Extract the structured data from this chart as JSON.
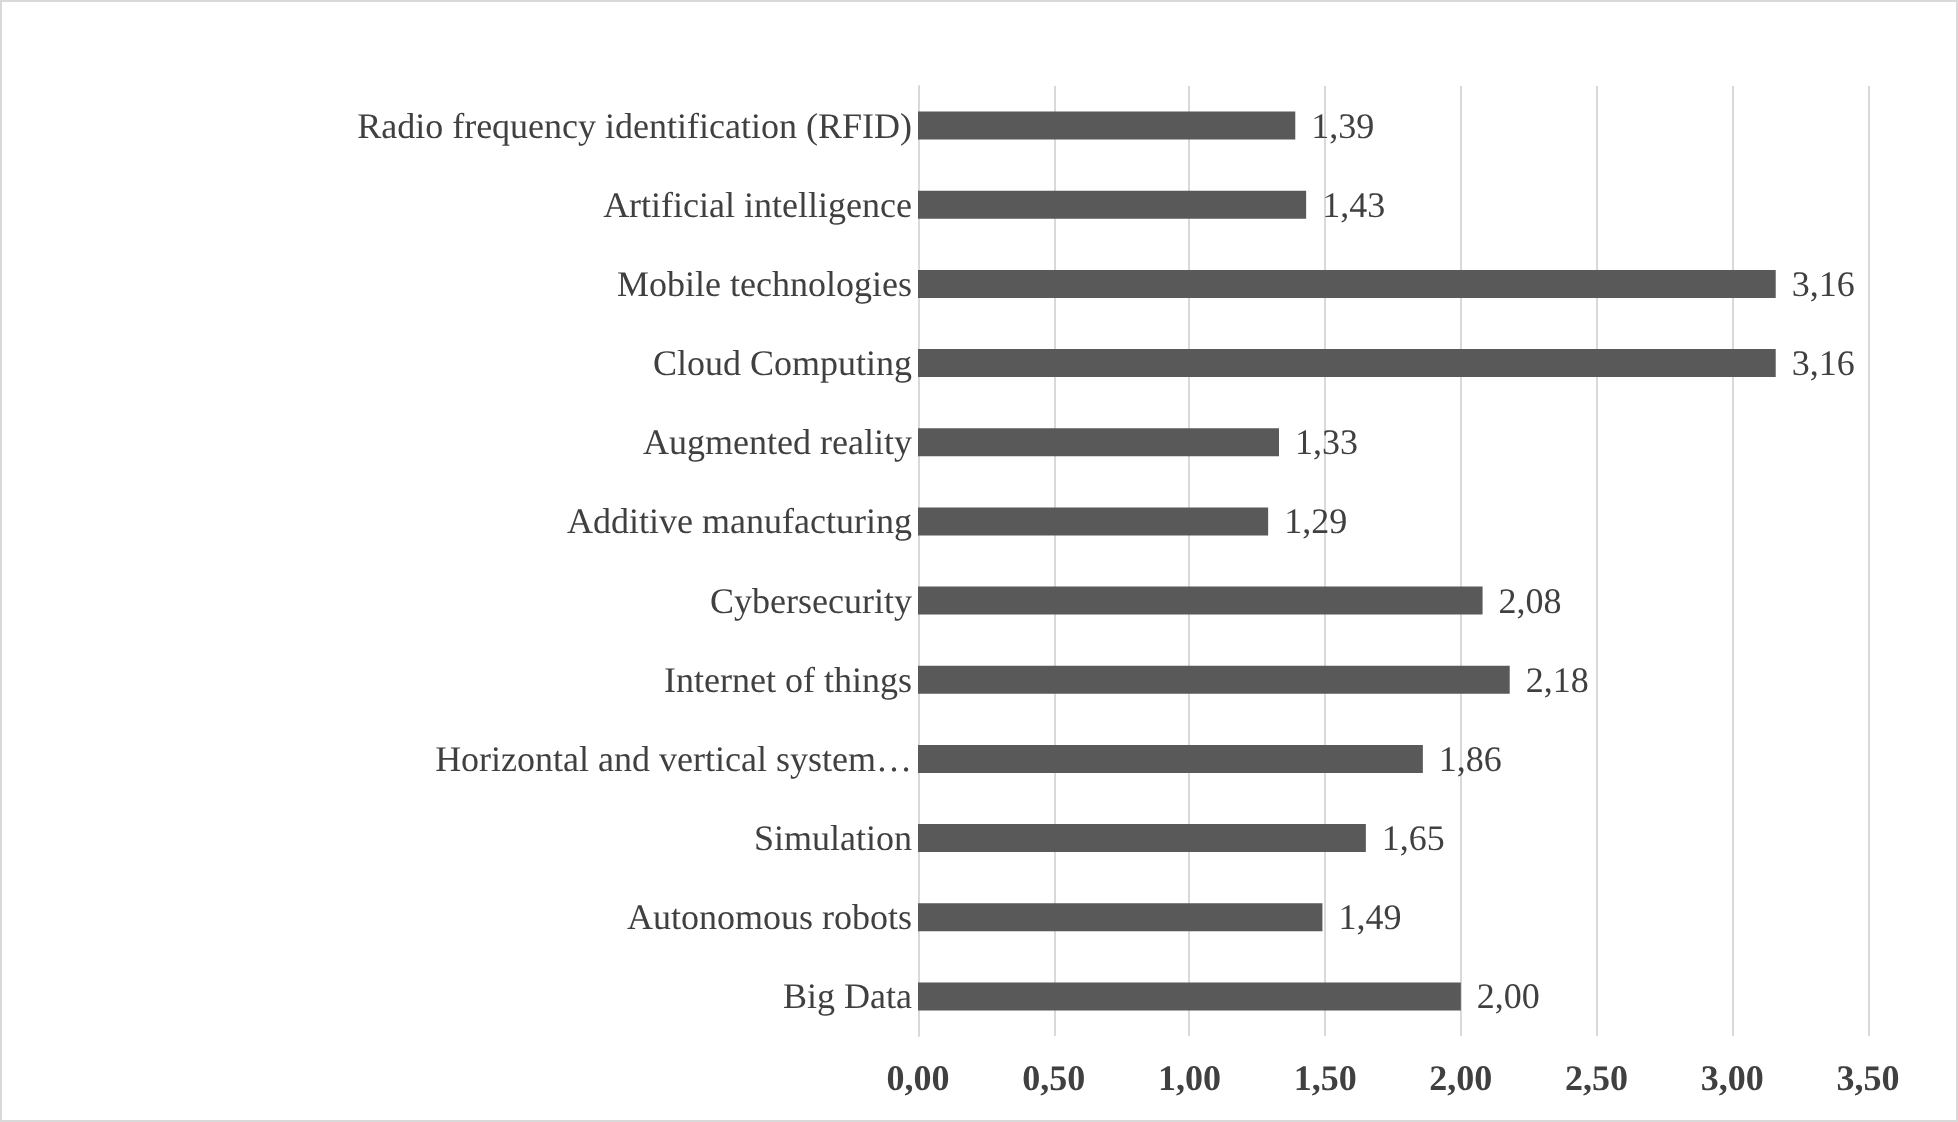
{
  "chart_data": {
    "type": "bar",
    "orientation": "horizontal",
    "categories": [
      "Radio frequency identification (RFID)",
      "Artificial intelligence",
      "Mobile technologies",
      "Cloud Computing",
      "Augmented reality",
      "Additive manufacturing",
      "Cybersecurity",
      "Internet of things",
      "Horizontal and vertical system…",
      "Simulation",
      "Autonomous robots",
      "Big Data"
    ],
    "values": [
      1.39,
      1.43,
      3.16,
      3.16,
      1.33,
      1.29,
      2.08,
      2.18,
      1.86,
      1.65,
      1.49,
      2.0
    ],
    "value_labels": [
      "1,39",
      "1,43",
      "3,16",
      "3,16",
      "1,33",
      "1,29",
      "2,08",
      "2,18",
      "1,86",
      "1,65",
      "1,49",
      "2,00"
    ],
    "color": "#595959",
    "xlim": [
      0,
      3.5
    ],
    "xticks": [
      {
        "value": 0,
        "label": "0,00"
      },
      {
        "value": 0.5,
        "label": "0,50"
      },
      {
        "value": 1,
        "label": "1,00"
      },
      {
        "value": 1.5,
        "label": "1,50"
      },
      {
        "value": 2,
        "label": "2,00"
      },
      {
        "value": 2.5,
        "label": "2,50"
      },
      {
        "value": 3,
        "label": "3,00"
      },
      {
        "value": 3.5,
        "label": "3,50"
      }
    ],
    "grid": "x"
  }
}
